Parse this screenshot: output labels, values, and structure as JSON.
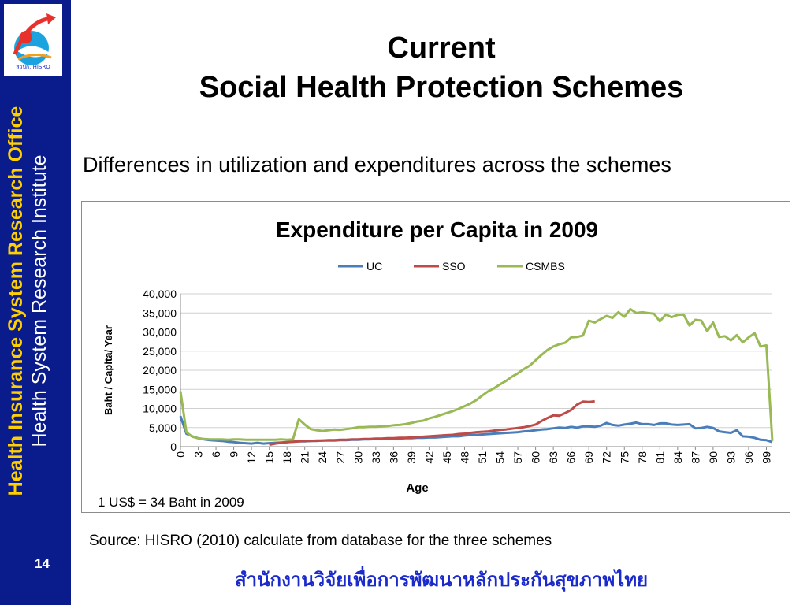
{
  "sidebar": {
    "line1": "Health Insurance System Research Office",
    "line2": "Health System Research Institute",
    "page_number": "14",
    "colors": {
      "background": "#0a1c8c",
      "line1": "#ffd000",
      "line2": "#ffffff"
    }
  },
  "logo": {
    "icon": "hisro-logo-icon",
    "text": "สวปก. HISRO"
  },
  "header": {
    "title_line1": "Current",
    "title_line2": "Social Health Protection Schemes",
    "subtitle": "Differences in utilization and expenditures across the schemes"
  },
  "chart_data": {
    "type": "line",
    "title": "Expenditure per Capita in 2009",
    "xlabel": "Age",
    "ylabel": "Baht / Capita/ Year",
    "ylim": [
      0,
      40000
    ],
    "xlim": [
      0,
      100
    ],
    "yticks": [
      "0",
      "5,000",
      "10,000",
      "15,000",
      "20,000",
      "25,000",
      "30,000",
      "35,000",
      "40,000"
    ],
    "xticks": [
      "0",
      "3",
      "6",
      "9",
      "12",
      "15",
      "18",
      "21",
      "24",
      "27",
      "30",
      "33",
      "36",
      "39",
      "42",
      "45",
      "48",
      "51",
      "54",
      "57",
      "60",
      "63",
      "66",
      "69",
      "72",
      "75",
      "78",
      "81",
      "84",
      "87",
      "90",
      "93",
      "96",
      "99"
    ],
    "grid": "horizontal",
    "legend": "top-center",
    "series": [
      {
        "name": "UC",
        "color": "#4a7ebb",
        "x": [
          0,
          1,
          2,
          3,
          4,
          5,
          6,
          7,
          8,
          9,
          10,
          11,
          12,
          13,
          14,
          15,
          16,
          17,
          18,
          19,
          20,
          21,
          22,
          23,
          24,
          25,
          26,
          27,
          28,
          29,
          30,
          31,
          32,
          33,
          34,
          35,
          36,
          37,
          38,
          39,
          40,
          41,
          42,
          43,
          44,
          45,
          46,
          47,
          48,
          49,
          50,
          51,
          52,
          53,
          54,
          55,
          56,
          57,
          58,
          59,
          60,
          61,
          62,
          63,
          64,
          65,
          66,
          67,
          68,
          69,
          70,
          71,
          72,
          73,
          74,
          75,
          76,
          77,
          78,
          79,
          80,
          81,
          82,
          83,
          84,
          85,
          86,
          87,
          88,
          89,
          90,
          91,
          92,
          93,
          94,
          95,
          96,
          97,
          98,
          99,
          100
        ],
        "y": [
          8000,
          3400,
          2700,
          2200,
          1900,
          1700,
          1600,
          1500,
          1300,
          1200,
          1000,
          900,
          800,
          1000,
          800,
          900,
          1000,
          1100,
          1200,
          1300,
          1400,
          1400,
          1500,
          1500,
          1600,
          1600,
          1600,
          1700,
          1700,
          1800,
          1800,
          1900,
          1900,
          2000,
          2000,
          2100,
          2100,
          2100,
          2200,
          2200,
          2300,
          2300,
          2400,
          2400,
          2500,
          2600,
          2700,
          2700,
          2900,
          3000,
          3100,
          3200,
          3300,
          3400,
          3500,
          3600,
          3700,
          3800,
          4000,
          4100,
          4300,
          4500,
          4600,
          4800,
          5000,
          4900,
          5200,
          5000,
          5300,
          5300,
          5200,
          5500,
          6200,
          5700,
          5500,
          5800,
          6000,
          6300,
          5900,
          5900,
          5700,
          6100,
          6100,
          5800,
          5700,
          5800,
          5900,
          4800,
          4900,
          5200,
          4900,
          4000,
          3800,
          3600,
          4300,
          2700,
          2600,
          2300,
          1800,
          1700,
          1200
        ]
      },
      {
        "name": "SSO",
        "color": "#be4b48",
        "x": [
          15,
          16,
          17,
          18,
          19,
          20,
          21,
          22,
          23,
          24,
          25,
          26,
          27,
          28,
          29,
          30,
          31,
          32,
          33,
          34,
          35,
          36,
          37,
          38,
          39,
          40,
          41,
          42,
          43,
          44,
          45,
          46,
          47,
          48,
          49,
          50,
          51,
          52,
          53,
          54,
          55,
          56,
          57,
          58,
          59,
          60,
          61,
          62,
          63,
          64,
          65,
          66,
          67,
          68,
          69,
          70
        ],
        "y": [
          500,
          800,
          1000,
          1200,
          1300,
          1400,
          1500,
          1500,
          1600,
          1600,
          1700,
          1700,
          1800,
          1800,
          1900,
          1900,
          2000,
          2000,
          2100,
          2100,
          2200,
          2200,
          2300,
          2300,
          2400,
          2500,
          2600,
          2700,
          2800,
          2900,
          3000,
          3100,
          3300,
          3400,
          3600,
          3800,
          3900,
          4000,
          4200,
          4400,
          4500,
          4700,
          4900,
          5100,
          5400,
          5800,
          6700,
          7500,
          8200,
          8100,
          8800,
          9600,
          11000,
          11800,
          11700,
          11900
        ]
      },
      {
        "name": "CSMBS",
        "color": "#98b954",
        "x": [
          0,
          1,
          2,
          3,
          4,
          5,
          6,
          7,
          8,
          9,
          10,
          11,
          12,
          13,
          14,
          15,
          16,
          17,
          18,
          19,
          20,
          21,
          22,
          23,
          24,
          25,
          26,
          27,
          28,
          29,
          30,
          31,
          32,
          33,
          34,
          35,
          36,
          37,
          38,
          39,
          40,
          41,
          42,
          43,
          44,
          45,
          46,
          47,
          48,
          49,
          50,
          51,
          52,
          53,
          54,
          55,
          56,
          57,
          58,
          59,
          60,
          61,
          62,
          63,
          64,
          65,
          66,
          67,
          68,
          69,
          70,
          71,
          72,
          73,
          74,
          75,
          76,
          77,
          78,
          79,
          80,
          81,
          82,
          83,
          84,
          85,
          86,
          87,
          88,
          89,
          90,
          91,
          92,
          93,
          94,
          95,
          96,
          97,
          98,
          99,
          100
        ],
        "y": [
          14500,
          3800,
          2600,
          2200,
          2000,
          1900,
          1900,
          1900,
          1800,
          1900,
          1900,
          1800,
          1800,
          1800,
          1800,
          1800,
          1800,
          1900,
          1800,
          1900,
          7200,
          5800,
          4600,
          4300,
          4100,
          4300,
          4500,
          4400,
          4600,
          4800,
          5100,
          5100,
          5200,
          5200,
          5300,
          5400,
          5600,
          5700,
          5900,
          6200,
          6600,
          6800,
          7400,
          7800,
          8300,
          8800,
          9300,
          9900,
          10600,
          11300,
          12200,
          13400,
          14500,
          15300,
          16300,
          17200,
          18300,
          19200,
          20300,
          21200,
          22600,
          24000,
          25300,
          26200,
          26800,
          27200,
          28600,
          28700,
          29100,
          33000,
          32500,
          33400,
          34200,
          33700,
          35200,
          34000,
          36000,
          35000,
          35200,
          35000,
          34800,
          32800,
          34600,
          33900,
          34500,
          34600,
          31700,
          33200,
          33000,
          30200,
          32500,
          28700,
          28900,
          27800,
          29200,
          27300,
          28600,
          29700,
          26200,
          26500,
          1500
        ]
      }
    ],
    "annotation": "1 US$ = 34 Baht in 2009"
  },
  "footer": {
    "source": "Source: HISRO (2010) calculate from database for the three schemes",
    "thai": "สำนักงานวิจัยเพื่อการพัฒนาหลักประกันสุขภาพไทย"
  }
}
